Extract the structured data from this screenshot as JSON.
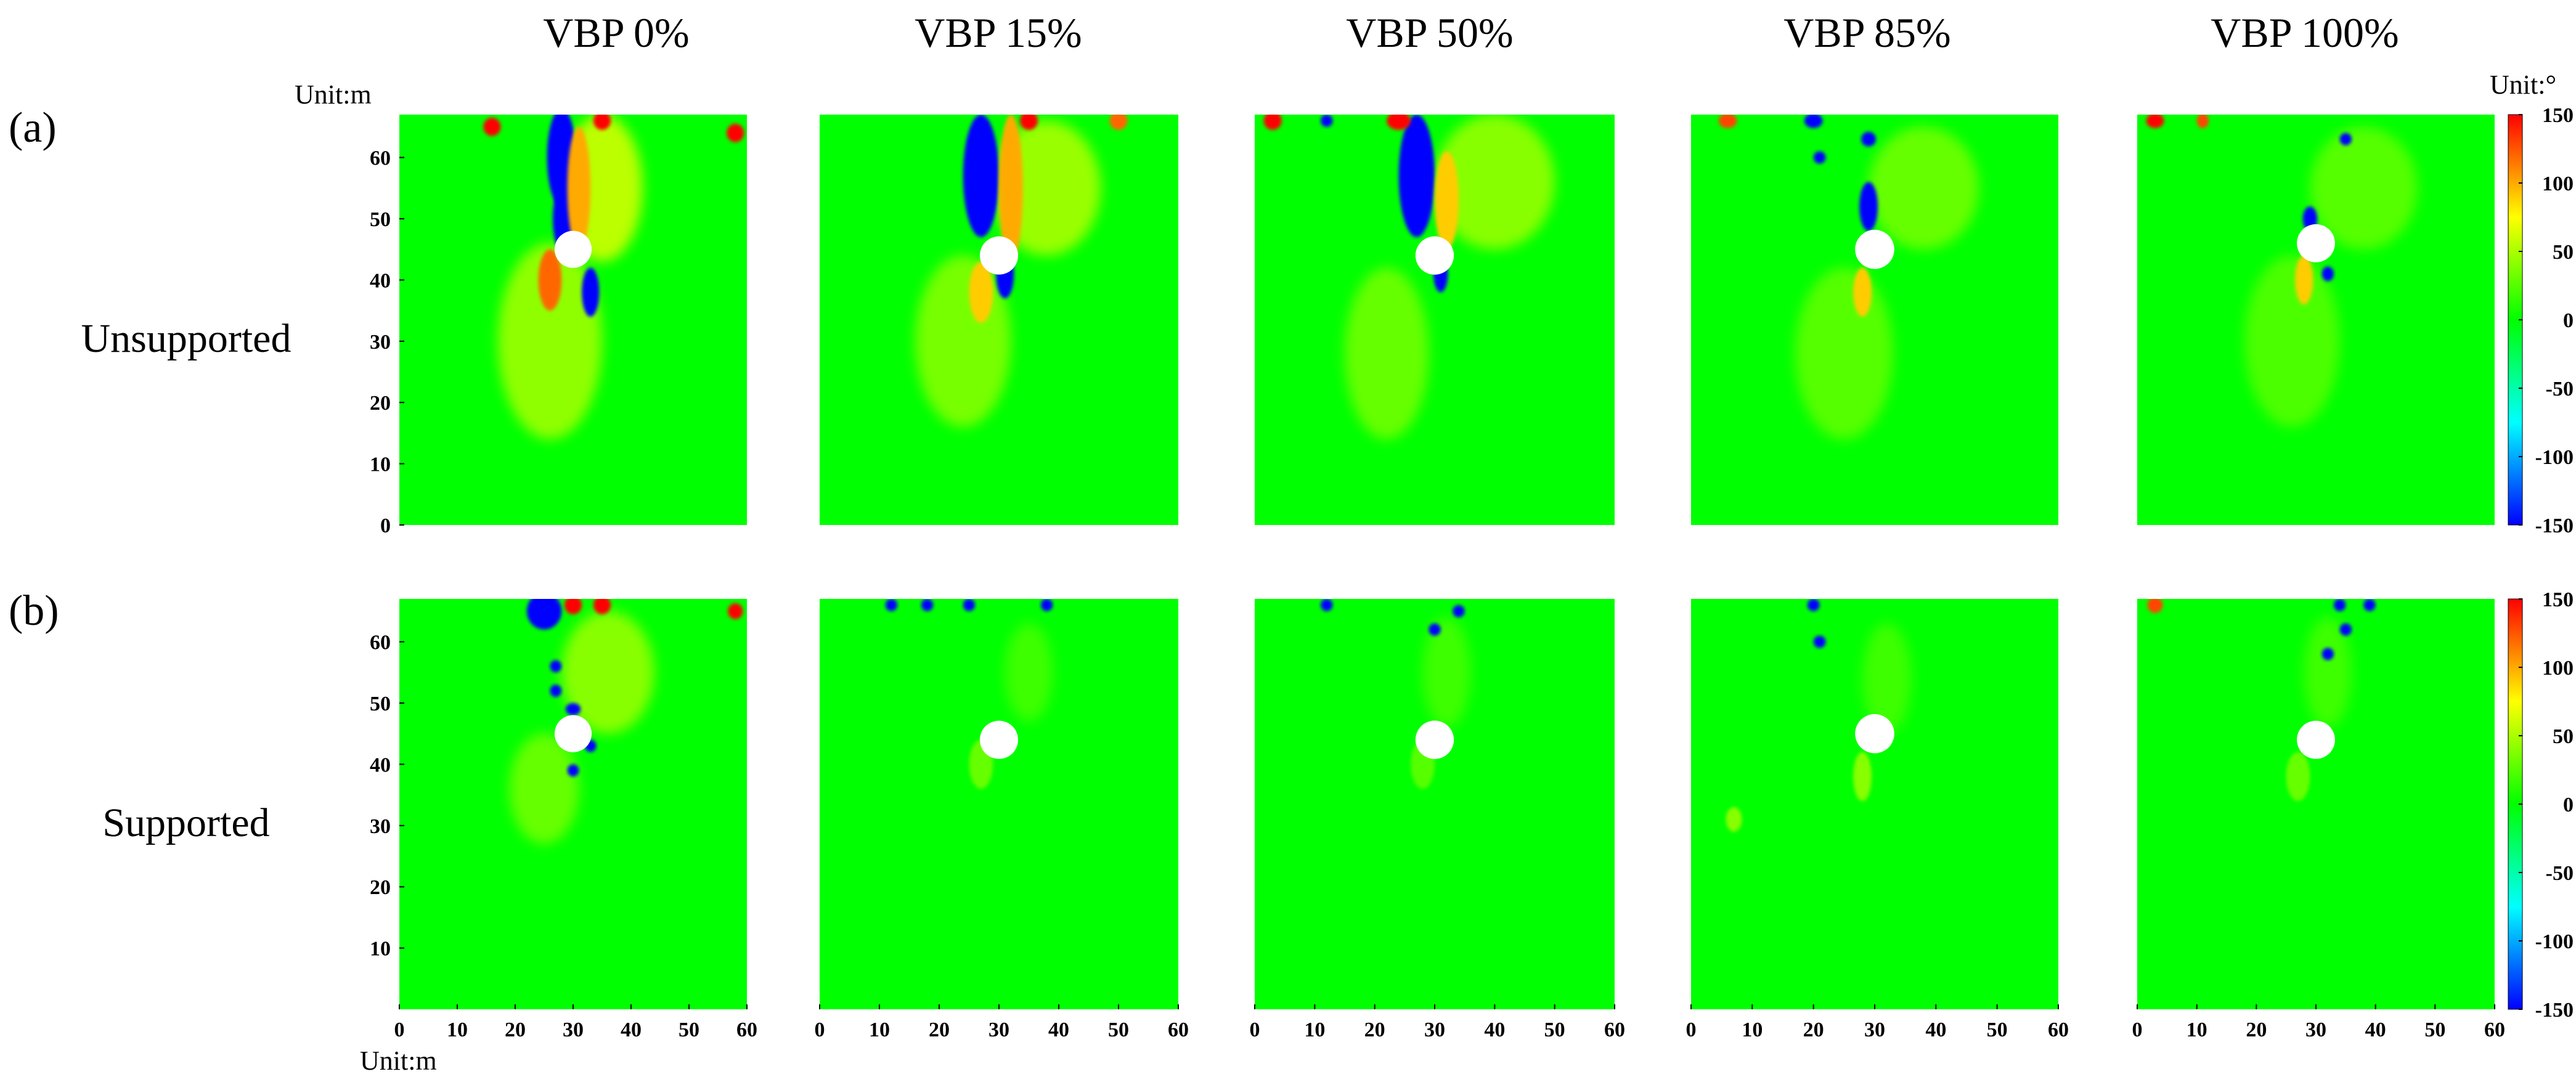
{
  "chart_data": {
    "type": "heatmap",
    "column_titles": [
      "VBP 0%",
      "VBP 15%",
      "VBP 50%",
      "VBP 85%",
      "VBP 100%"
    ],
    "rows": [
      {
        "panel_label": "(a)",
        "name": "Unsupported"
      },
      {
        "panel_label": "(b)",
        "name": "Supported"
      }
    ],
    "x_unit_label": "Unit:m",
    "y_unit_label": "Unit:m",
    "colorbar_unit_label": "Unit:°",
    "xlim": [
      0,
      60
    ],
    "ylim": [
      0,
      67
    ],
    "x_ticks": [
      0,
      10,
      20,
      30,
      40,
      50,
      60
    ],
    "y_ticks_row_a": [
      0,
      10,
      20,
      30,
      40,
      50,
      60
    ],
    "y_ticks_row_b": [
      10,
      20,
      30,
      40,
      50,
      60
    ],
    "colorbar": {
      "min": -150,
      "max": 150,
      "ticks": [
        150,
        100,
        50,
        0,
        -50,
        -100,
        -150
      ],
      "colors": [
        "#0000ff",
        "#00ffff",
        "#00ff00",
        "#ffff00",
        "#ff0000"
      ]
    },
    "background_value": 0,
    "opening": {
      "x": 30,
      "y": 44,
      "radius": 3.2
    },
    "panels": [
      {
        "row": 0,
        "col": 0,
        "opening": {
          "x": 30,
          "y": 45
        },
        "regions": [
          {
            "x": 26,
            "y": 30,
            "rx": 9,
            "ry": 16,
            "value": 42
          },
          {
            "x": 35,
            "y": 55,
            "rx": 7,
            "ry": 12,
            "value": 55
          },
          {
            "x": 28,
            "y": 60,
            "rx": 2.5,
            "ry": 8,
            "value": -150
          },
          {
            "x": 28.5,
            "y": 50,
            "rx": 2,
            "ry": 6,
            "value": -150
          },
          {
            "x": 33,
            "y": 38,
            "rx": 1.5,
            "ry": 4,
            "value": -150
          },
          {
            "x": 26,
            "y": 40,
            "rx": 2,
            "ry": 5,
            "value": 120
          },
          {
            "x": 31,
            "y": 55,
            "rx": 2,
            "ry": 10,
            "value": 100
          },
          {
            "x": 16,
            "y": 65,
            "rx": 1.5,
            "ry": 1.5,
            "value": 150
          },
          {
            "x": 35,
            "y": 66,
            "rx": 1.5,
            "ry": 1.5,
            "value": 150
          },
          {
            "x": 58,
            "y": 64,
            "rx": 1.5,
            "ry": 1.5,
            "value": 150
          }
        ]
      },
      {
        "row": 0,
        "col": 1,
        "opening": {
          "x": 30,
          "y": 44
        },
        "regions": [
          {
            "x": 24,
            "y": 30,
            "rx": 8,
            "ry": 14,
            "value": 35
          },
          {
            "x": 38,
            "y": 55,
            "rx": 9,
            "ry": 11,
            "value": 45
          },
          {
            "x": 27,
            "y": 57,
            "rx": 3,
            "ry": 10,
            "value": -150
          },
          {
            "x": 31,
            "y": 41,
            "rx": 1.5,
            "ry": 4,
            "value": -150
          },
          {
            "x": 32,
            "y": 55,
            "rx": 2,
            "ry": 12,
            "value": 100
          },
          {
            "x": 27,
            "y": 38,
            "rx": 2,
            "ry": 5,
            "value": 90
          },
          {
            "x": 35,
            "y": 66,
            "rx": 1.5,
            "ry": 1.5,
            "value": 150
          },
          {
            "x": 50,
            "y": 66,
            "rx": 1.5,
            "ry": 1.5,
            "value": 120
          }
        ]
      },
      {
        "row": 0,
        "col": 2,
        "opening": {
          "x": 30,
          "y": 44
        },
        "regions": [
          {
            "x": 22,
            "y": 28,
            "rx": 7,
            "ry": 14,
            "value": 30
          },
          {
            "x": 40,
            "y": 56,
            "rx": 10,
            "ry": 11,
            "value": 40
          },
          {
            "x": 27,
            "y": 57,
            "rx": 3,
            "ry": 10,
            "value": -150
          },
          {
            "x": 31,
            "y": 41,
            "rx": 1.2,
            "ry": 3,
            "value": -150
          },
          {
            "x": 32,
            "y": 53,
            "rx": 2,
            "ry": 8,
            "value": 90
          },
          {
            "x": 3,
            "y": 66,
            "rx": 1.5,
            "ry": 1.5,
            "value": 150
          },
          {
            "x": 12,
            "y": 66,
            "rx": 1,
            "ry": 1,
            "value": -150
          },
          {
            "x": 24,
            "y": 66,
            "rx": 2,
            "ry": 1.5,
            "value": 150
          }
        ]
      },
      {
        "row": 0,
        "col": 3,
        "opening": {
          "x": 30,
          "y": 45
        },
        "regions": [
          {
            "x": 25,
            "y": 28,
            "rx": 8,
            "ry": 14,
            "value": 25
          },
          {
            "x": 38,
            "y": 55,
            "rx": 9,
            "ry": 10,
            "value": 30
          },
          {
            "x": 29,
            "y": 52,
            "rx": 1.5,
            "ry": 4,
            "value": -150
          },
          {
            "x": 28,
            "y": 38,
            "rx": 1.5,
            "ry": 4,
            "value": 90
          },
          {
            "x": 20,
            "y": 66,
            "rx": 1.5,
            "ry": 1.2,
            "value": -150
          },
          {
            "x": 21,
            "y": 60,
            "rx": 1,
            "ry": 1,
            "value": -150
          },
          {
            "x": 29,
            "y": 63,
            "rx": 1.2,
            "ry": 1.2,
            "value": -150
          },
          {
            "x": 6,
            "y": 66,
            "rx": 1.5,
            "ry": 1.2,
            "value": 130
          }
        ]
      },
      {
        "row": 0,
        "col": 4,
        "opening": {
          "x": 30,
          "y": 46
        },
        "regions": [
          {
            "x": 26,
            "y": 30,
            "rx": 8,
            "ry": 14,
            "value": 22
          },
          {
            "x": 38,
            "y": 55,
            "rx": 9,
            "ry": 10,
            "value": 25
          },
          {
            "x": 29,
            "y": 50,
            "rx": 1.2,
            "ry": 2,
            "value": -150
          },
          {
            "x": 32,
            "y": 41,
            "rx": 1,
            "ry": 1.2,
            "value": -150
          },
          {
            "x": 35,
            "y": 63,
            "rx": 1,
            "ry": 1,
            "value": -150
          },
          {
            "x": 28,
            "y": 40,
            "rx": 1.5,
            "ry": 4,
            "value": 90
          },
          {
            "x": 3,
            "y": 66,
            "rx": 1.5,
            "ry": 1.2,
            "value": 150
          },
          {
            "x": 11,
            "y": 66,
            "rx": 1,
            "ry": 1.2,
            "value": 130
          }
        ]
      },
      {
        "row": 1,
        "col": 0,
        "opening": {
          "x": 30,
          "y": 45
        },
        "regions": [
          {
            "x": 25,
            "y": 36,
            "rx": 6,
            "ry": 9,
            "value": 30
          },
          {
            "x": 36,
            "y": 55,
            "rx": 8,
            "ry": 10,
            "value": 40
          },
          {
            "x": 25,
            "y": 65,
            "rx": 3,
            "ry": 3,
            "value": -150
          },
          {
            "x": 27,
            "y": 56,
            "rx": 1,
            "ry": 1,
            "value": -150
          },
          {
            "x": 27,
            "y": 52,
            "rx": 1,
            "ry": 1,
            "value": -150
          },
          {
            "x": 30,
            "y": 49,
            "rx": 1.3,
            "ry": 1,
            "value": -150
          },
          {
            "x": 30,
            "y": 39,
            "rx": 1,
            "ry": 1,
            "value": -150
          },
          {
            "x": 33,
            "y": 43,
            "rx": 1,
            "ry": 1,
            "value": -150
          },
          {
            "x": 30,
            "y": 66,
            "rx": 1.5,
            "ry": 1.5,
            "value": 150
          },
          {
            "x": 35,
            "y": 66,
            "rx": 1.5,
            "ry": 1.5,
            "value": 150
          },
          {
            "x": 58,
            "y": 65,
            "rx": 1.3,
            "ry": 1.3,
            "value": 150
          }
        ]
      },
      {
        "row": 1,
        "col": 1,
        "opening": {
          "x": 30,
          "y": 44
        },
        "regions": [
          {
            "x": 35,
            "y": 55,
            "rx": 4,
            "ry": 8,
            "value": 18
          },
          {
            "x": 27,
            "y": 40,
            "rx": 2,
            "ry": 4,
            "value": 30
          },
          {
            "x": 12,
            "y": 66,
            "rx": 1,
            "ry": 1,
            "value": -150
          },
          {
            "x": 18,
            "y": 66,
            "rx": 1,
            "ry": 1,
            "value": -150
          },
          {
            "x": 25,
            "y": 66,
            "rx": 1,
            "ry": 1,
            "value": -150
          },
          {
            "x": 38,
            "y": 66,
            "rx": 1,
            "ry": 1,
            "value": -150
          }
        ]
      },
      {
        "row": 1,
        "col": 2,
        "opening": {
          "x": 30,
          "y": 44
        },
        "regions": [
          {
            "x": 32,
            "y": 55,
            "rx": 4,
            "ry": 9,
            "value": 18
          },
          {
            "x": 28,
            "y": 40,
            "rx": 2,
            "ry": 4,
            "value": 25
          },
          {
            "x": 30,
            "y": 62,
            "rx": 1,
            "ry": 1,
            "value": -150
          },
          {
            "x": 34,
            "y": 65,
            "rx": 1,
            "ry": 1,
            "value": -150
          },
          {
            "x": 12,
            "y": 66,
            "rx": 1,
            "ry": 1,
            "value": -150
          }
        ]
      },
      {
        "row": 1,
        "col": 3,
        "opening": {
          "x": 30,
          "y": 45
        },
        "regions": [
          {
            "x": 32,
            "y": 54,
            "rx": 4,
            "ry": 9,
            "value": 18
          },
          {
            "x": 28,
            "y": 38,
            "rx": 1.5,
            "ry": 4,
            "value": 40
          },
          {
            "x": 20,
            "y": 66,
            "rx": 1,
            "ry": 1,
            "value": -150
          },
          {
            "x": 21,
            "y": 60,
            "rx": 1,
            "ry": 1,
            "value": -150
          },
          {
            "x": 7,
            "y": 31,
            "rx": 1.3,
            "ry": 2,
            "value": 40
          }
        ]
      },
      {
        "row": 1,
        "col": 4,
        "opening": {
          "x": 30,
          "y": 44
        },
        "regions": [
          {
            "x": 32,
            "y": 55,
            "rx": 4,
            "ry": 9,
            "value": 18
          },
          {
            "x": 27,
            "y": 38,
            "rx": 2,
            "ry": 4,
            "value": 30
          },
          {
            "x": 34,
            "y": 66,
            "rx": 1,
            "ry": 1,
            "value": -150
          },
          {
            "x": 39,
            "y": 66,
            "rx": 1,
            "ry": 1,
            "value": -150
          },
          {
            "x": 35,
            "y": 62,
            "rx": 1,
            "ry": 1,
            "value": -150
          },
          {
            "x": 32,
            "y": 58,
            "rx": 1,
            "ry": 1,
            "value": -150
          },
          {
            "x": 3,
            "y": 66,
            "rx": 1.3,
            "ry": 1.3,
            "value": 130
          }
        ]
      }
    ]
  }
}
